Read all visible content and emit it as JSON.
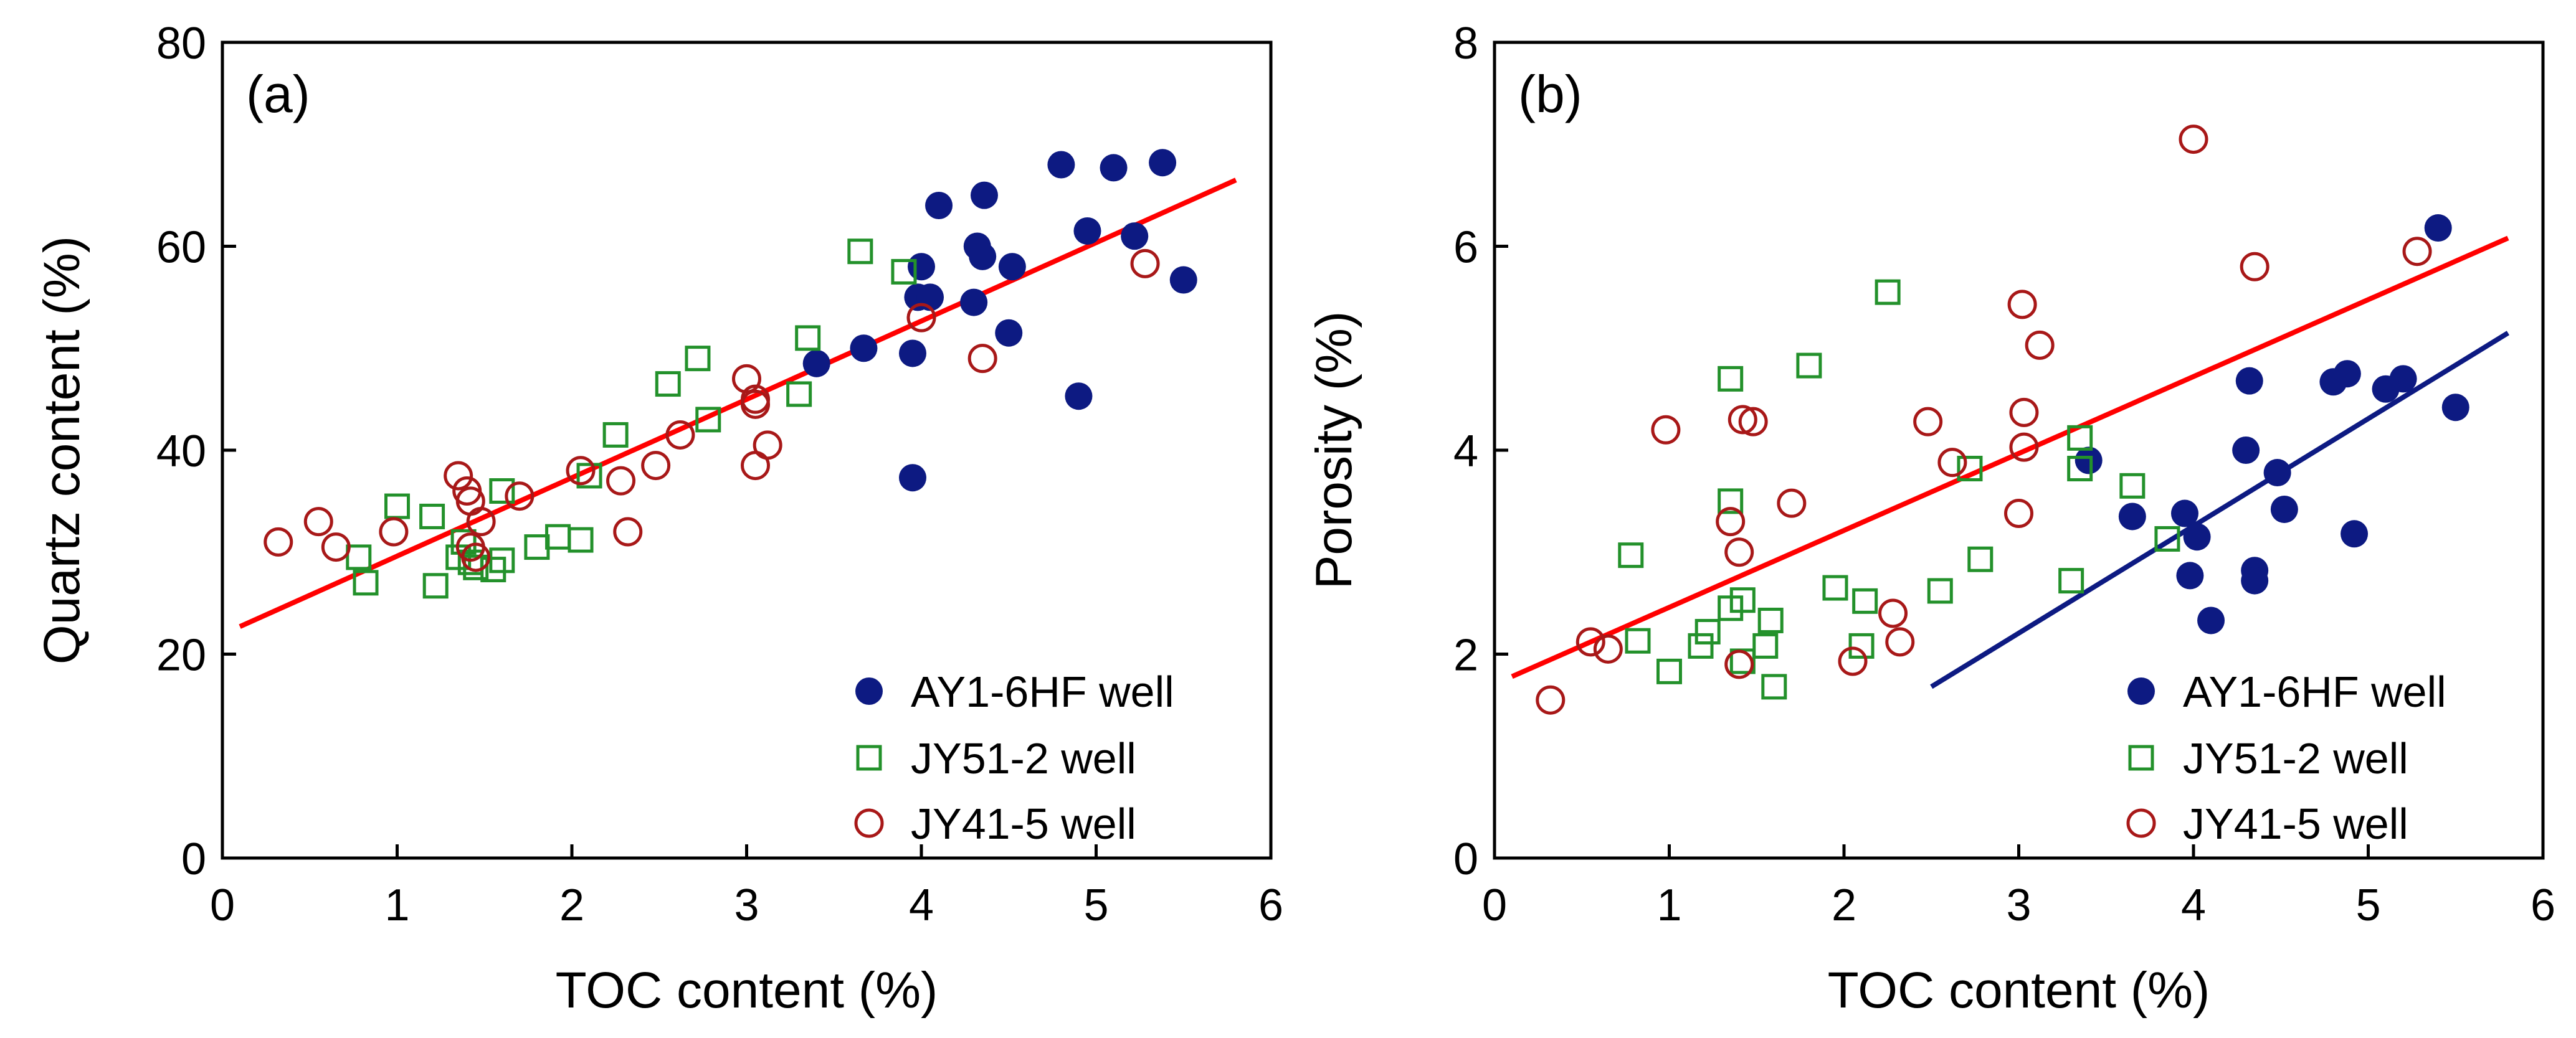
{
  "colors": {
    "ay1": "#0d1a82",
    "jy51": "#23912b",
    "jy41": "#a81818",
    "fit_red": "#ff0000",
    "fit_navy": "#0d1a82"
  },
  "legend": {
    "entries": [
      {
        "label": "AY1-6HF well",
        "marker": "filled-circle",
        "color": "#0d1a82"
      },
      {
        "label": "JY51-2 well",
        "marker": "open-square",
        "color": "#23912b"
      },
      {
        "label": "JY41-5 well",
        "marker": "open-circle",
        "color": "#a81818"
      }
    ]
  },
  "chart_data": [
    {
      "type": "scatter",
      "panel_label": "(a)",
      "xlabel": "TOC content (%)",
      "ylabel": "Quartz content (%)",
      "xlim": [
        0,
        6
      ],
      "ylim": [
        0,
        80
      ],
      "xticks": [
        "0",
        "1",
        "2",
        "3",
        "4",
        "5",
        "6"
      ],
      "yticks": [
        "0",
        "20",
        "40",
        "60",
        "80"
      ],
      "legend_position": "bottom-right",
      "series": [
        {
          "name": "AY1-6HF well",
          "marker": "filled-circle",
          "points": [
            [
              3.4,
              48.5
            ],
            [
              3.67,
              50
            ],
            [
              3.95,
              49.5
            ],
            [
              3.95,
              37.3
            ],
            [
              3.98,
              55
            ],
            [
              4.0,
              58
            ],
            [
              4.05,
              55
            ],
            [
              4.1,
              64
            ],
            [
              4.3,
              54.5
            ],
            [
              4.32,
              60
            ],
            [
              4.35,
              59
            ],
            [
              4.36,
              65
            ],
            [
              4.5,
              51.5
            ],
            [
              4.52,
              58
            ],
            [
              4.8,
              68
            ],
            [
              4.9,
              45.3
            ],
            [
              4.95,
              61.5
            ],
            [
              5.1,
              67.7
            ],
            [
              5.22,
              61
            ],
            [
              5.38,
              68.2
            ],
            [
              5.5,
              56.7
            ]
          ]
        },
        {
          "name": "JY51-2 well",
          "marker": "open-square",
          "points": [
            [
              0.78,
              29.5
            ],
            [
              0.82,
              27
            ],
            [
              1.0,
              34.5
            ],
            [
              1.2,
              33.5
            ],
            [
              1.22,
              26.7
            ],
            [
              1.35,
              29.5
            ],
            [
              1.38,
              31
            ],
            [
              1.42,
              29
            ],
            [
              1.45,
              28.5
            ],
            [
              1.55,
              28.3
            ],
            [
              1.6,
              29.2
            ],
            [
              1.6,
              36
            ],
            [
              1.8,
              30.5
            ],
            [
              1.92,
              31.5
            ],
            [
              2.05,
              31.2
            ],
            [
              2.1,
              37.5
            ],
            [
              2.25,
              41.5
            ],
            [
              2.55,
              46.5
            ],
            [
              2.72,
              49
            ],
            [
              2.78,
              43
            ],
            [
              3.3,
              45.5
            ],
            [
              3.35,
              51
            ],
            [
              3.65,
              59.5
            ],
            [
              3.9,
              57.5
            ]
          ]
        },
        {
          "name": "JY41-5 well",
          "marker": "open-circle",
          "points": [
            [
              0.32,
              31
            ],
            [
              0.55,
              33
            ],
            [
              0.65,
              30.5
            ],
            [
              0.98,
              32
            ],
            [
              1.35,
              37.5
            ],
            [
              1.4,
              36
            ],
            [
              1.42,
              35
            ],
            [
              1.42,
              30.5
            ],
            [
              1.45,
              29.5
            ],
            [
              1.48,
              33
            ],
            [
              1.7,
              35.5
            ],
            [
              2.05,
              38
            ],
            [
              2.28,
              37
            ],
            [
              2.32,
              32
            ],
            [
              2.48,
              38.5
            ],
            [
              2.62,
              41.5
            ],
            [
              3.0,
              47
            ],
            [
              3.05,
              45
            ],
            [
              3.05,
              44.5
            ],
            [
              3.05,
              38.5
            ],
            [
              3.12,
              40.5
            ],
            [
              4.0,
              53
            ],
            [
              4.35,
              49
            ],
            [
              5.28,
              58.3
            ]
          ]
        }
      ],
      "fit_lines": [
        {
          "name": "overall fit",
          "color": "#ff0000",
          "points": [
            [
              0.1,
              22.7
            ],
            [
              5.8,
              66.5
            ]
          ]
        }
      ]
    },
    {
      "type": "scatter",
      "panel_label": "(b)",
      "xlabel": "TOC content (%)",
      "ylabel": "Porosity (%)",
      "xlim": [
        0,
        6
      ],
      "ylim": [
        0,
        8
      ],
      "xticks": [
        "0",
        "1",
        "2",
        "3",
        "4",
        "5",
        "6"
      ],
      "yticks": [
        "0",
        "2",
        "4",
        "6",
        "8"
      ],
      "legend_position": "bottom-right",
      "series": [
        {
          "name": "AY1-6HF well",
          "marker": "filled-circle",
          "points": [
            [
              3.4,
              3.9
            ],
            [
              3.65,
              3.35
            ],
            [
              3.95,
              3.38
            ],
            [
              3.98,
              2.77
            ],
            [
              4.02,
              3.15
            ],
            [
              4.1,
              2.33
            ],
            [
              4.3,
              4.0
            ],
            [
              4.32,
              4.68
            ],
            [
              4.35,
              2.82
            ],
            [
              4.35,
              2.72
            ],
            [
              4.48,
              3.78
            ],
            [
              4.52,
              3.42
            ],
            [
              4.8,
              4.67
            ],
            [
              4.88,
              4.75
            ],
            [
              4.92,
              3.18
            ],
            [
              5.1,
              4.6
            ],
            [
              5.2,
              4.7
            ],
            [
              5.4,
              6.18
            ],
            [
              5.5,
              4.42
            ]
          ]
        },
        {
          "name": "JY51-2 well",
          "marker": "open-square",
          "points": [
            [
              0.78,
              2.97
            ],
            [
              0.82,
              2.13
            ],
            [
              1.0,
              1.83
            ],
            [
              1.18,
              2.08
            ],
            [
              1.22,
              2.22
            ],
            [
              1.35,
              2.45
            ],
            [
              1.35,
              3.5
            ],
            [
              1.35,
              4.7
            ],
            [
              1.42,
              1.93
            ],
            [
              1.42,
              2.53
            ],
            [
              1.55,
              2.08
            ],
            [
              1.58,
              2.33
            ],
            [
              1.6,
              1.68
            ],
            [
              1.8,
              4.83
            ],
            [
              1.95,
              2.65
            ],
            [
              2.1,
              2.08
            ],
            [
              2.12,
              2.52
            ],
            [
              2.25,
              5.55
            ],
            [
              2.55,
              2.62
            ],
            [
              2.72,
              3.82
            ],
            [
              2.78,
              2.93
            ],
            [
              3.3,
              2.72
            ],
            [
              3.35,
              3.82
            ],
            [
              3.35,
              4.12
            ],
            [
              3.65,
              3.65
            ],
            [
              3.85,
              3.13
            ]
          ]
        },
        {
          "name": "JY41-5 well",
          "marker": "open-circle",
          "points": [
            [
              0.32,
              1.55
            ],
            [
              0.55,
              2.12
            ],
            [
              0.65,
              2.05
            ],
            [
              0.98,
              4.2
            ],
            [
              1.35,
              3.3
            ],
            [
              1.4,
              1.9
            ],
            [
              1.4,
              3.0
            ],
            [
              1.42,
              4.3
            ],
            [
              1.48,
              4.28
            ],
            [
              1.7,
              3.48
            ],
            [
              2.05,
              1.93
            ],
            [
              2.28,
              2.4
            ],
            [
              2.32,
              2.12
            ],
            [
              2.48,
              4.28
            ],
            [
              2.62,
              3.88
            ],
            [
              3.0,
              3.38
            ],
            [
              3.02,
              5.43
            ],
            [
              3.03,
              4.37
            ],
            [
              3.03,
              4.03
            ],
            [
              3.12,
              5.03
            ],
            [
              4.0,
              7.05
            ],
            [
              4.35,
              5.8
            ],
            [
              5.28,
              5.95
            ]
          ]
        }
      ],
      "fit_lines": [
        {
          "name": "overall fit",
          "color": "#ff0000",
          "points": [
            [
              0.1,
              1.78
            ],
            [
              5.8,
              6.08
            ]
          ]
        },
        {
          "name": "AY1-6HF fit",
          "color": "#0d1a82",
          "points": [
            [
              2.5,
              1.68
            ],
            [
              5.8,
              5.15
            ]
          ]
        }
      ]
    }
  ]
}
